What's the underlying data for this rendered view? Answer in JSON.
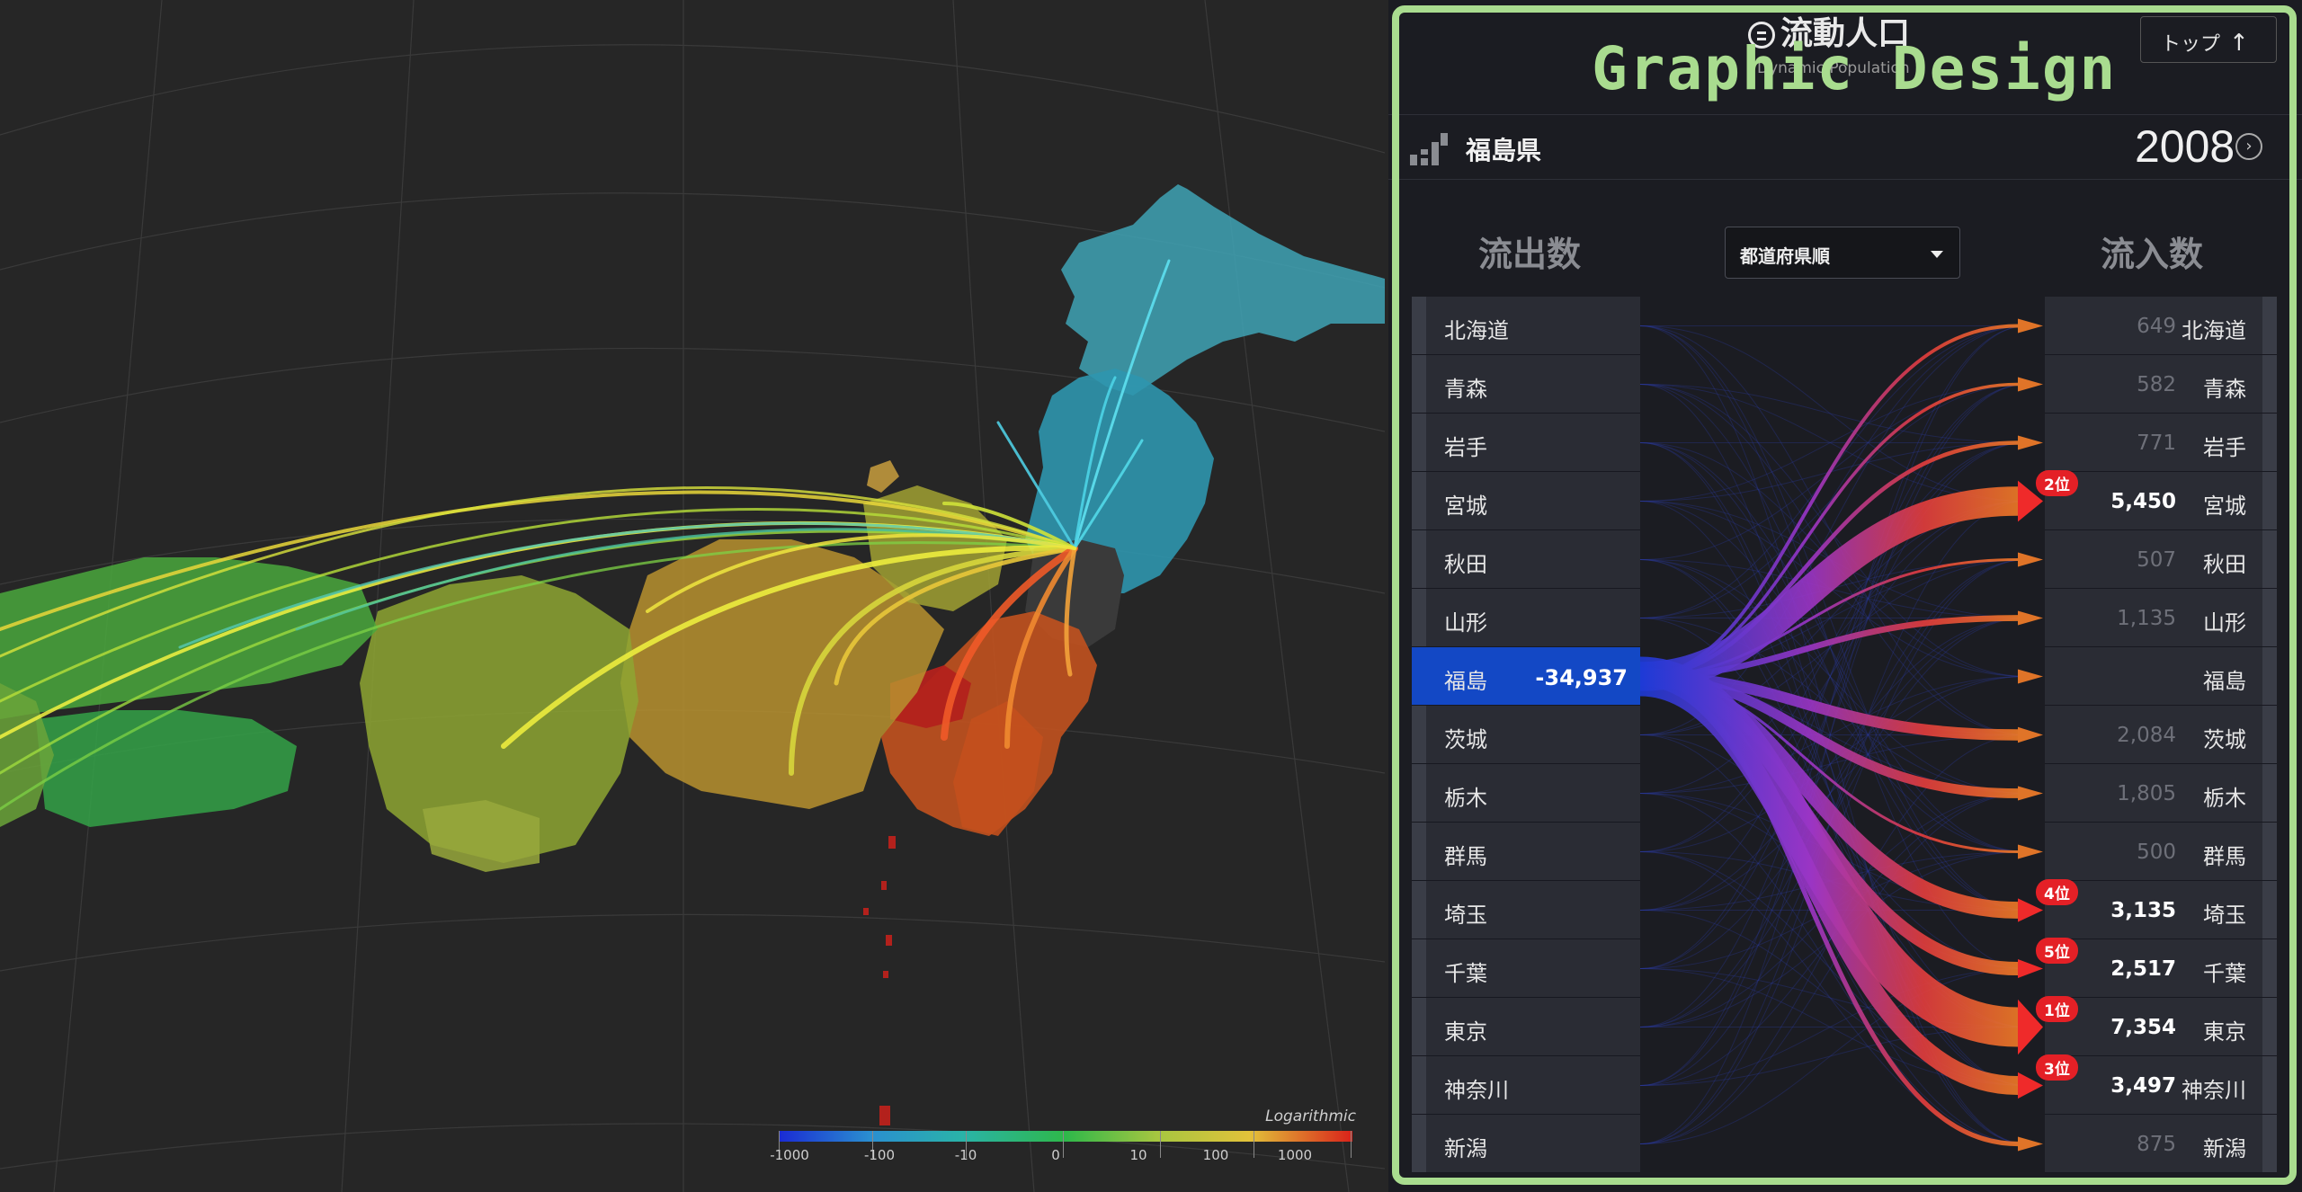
{
  "app": {
    "title": "流動人口",
    "subtitle": "Dynamic Population",
    "top_button": "トップ",
    "top_icon": "arrow-up-icon",
    "watermark": "Graphic Design"
  },
  "region": {
    "name": "福島県",
    "year": "2008",
    "year_next_icon": "chevron-right-circle-icon"
  },
  "columns": {
    "outflow": "流出数",
    "inflow": "流入数"
  },
  "sort": {
    "selected": "都道府県順"
  },
  "left_rows": [
    {
      "name": "北海道",
      "value": ""
    },
    {
      "name": "青森",
      "value": ""
    },
    {
      "name": "岩手",
      "value": ""
    },
    {
      "name": "宮城",
      "value": ""
    },
    {
      "name": "秋田",
      "value": ""
    },
    {
      "name": "山形",
      "value": ""
    },
    {
      "name": "福島",
      "value": "-34,937",
      "selected": true
    },
    {
      "name": "茨城",
      "value": ""
    },
    {
      "name": "栃木",
      "value": ""
    },
    {
      "name": "群馬",
      "value": ""
    },
    {
      "name": "埼玉",
      "value": ""
    },
    {
      "name": "千葉",
      "value": ""
    },
    {
      "name": "東京",
      "value": ""
    },
    {
      "name": "神奈川",
      "value": ""
    },
    {
      "name": "新潟",
      "value": ""
    }
  ],
  "right_rows": [
    {
      "name": "北海道",
      "value": "649",
      "badge": ""
    },
    {
      "name": "青森",
      "value": "582",
      "badge": ""
    },
    {
      "name": "岩手",
      "value": "771",
      "badge": ""
    },
    {
      "name": "宮城",
      "value": "5,450",
      "badge": "2位"
    },
    {
      "name": "秋田",
      "value": "507",
      "badge": ""
    },
    {
      "name": "山形",
      "value": "1,135",
      "badge": ""
    },
    {
      "name": "福島",
      "value": "",
      "badge": ""
    },
    {
      "name": "茨城",
      "value": "2,084",
      "badge": ""
    },
    {
      "name": "栃木",
      "value": "1,805",
      "badge": ""
    },
    {
      "name": "群馬",
      "value": "500",
      "badge": ""
    },
    {
      "name": "埼玉",
      "value": "3,135",
      "badge": "4位"
    },
    {
      "name": "千葉",
      "value": "2,517",
      "badge": "5位"
    },
    {
      "name": "東京",
      "value": "7,354",
      "badge": "1位"
    },
    {
      "name": "神奈川",
      "value": "3,497",
      "badge": "3位"
    },
    {
      "name": "新潟",
      "value": "875",
      "badge": ""
    }
  ],
  "legend": {
    "title": "Logarithmic",
    "ticks": [
      "-1000",
      "-100",
      "-10",
      "0",
      "10",
      "100",
      "1000"
    ]
  },
  "colors": {
    "selected_row": "#1348c5",
    "rank_badge": "#e42026",
    "frame": "#a9dc8f"
  }
}
